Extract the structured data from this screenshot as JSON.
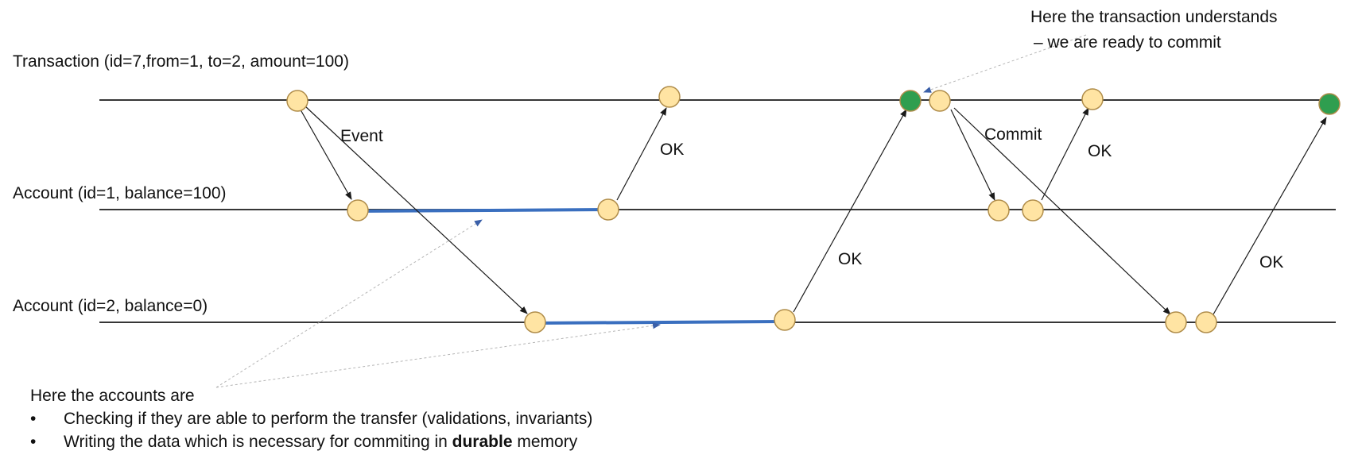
{
  "lanes": [
    {
      "label": "Transaction (id=7,from=1, to=2, amount=100)"
    },
    {
      "label": "Account (id=1, balance=100)"
    },
    {
      "label": "Account (id=2, balance=0)"
    }
  ],
  "messages": {
    "event": "Event",
    "ok_account1": "OK",
    "ok_account2": "OK",
    "commit": "Commit",
    "ok_commit_account1": "OK",
    "ok_commit_account2": "OK"
  },
  "callouts": {
    "ready_line1": "Here the transaction understands",
    "ready_line2": "– we are ready to commit"
  },
  "notes": {
    "heading": "Here the accounts are",
    "bullet1": "Checking if they are able to perform the transfer (validations, invariants)",
    "bullet2_before": "Writing the data which is necessary for commiting in",
    "bullet2_bold": "durable",
    "bullet2_after": "memory"
  },
  "colors": {
    "node_fill": "#ffe4a3",
    "node_complete_fill": "#2f9e4f",
    "processing_bar": "#3a6fbf",
    "line": "#1a1a1a"
  }
}
